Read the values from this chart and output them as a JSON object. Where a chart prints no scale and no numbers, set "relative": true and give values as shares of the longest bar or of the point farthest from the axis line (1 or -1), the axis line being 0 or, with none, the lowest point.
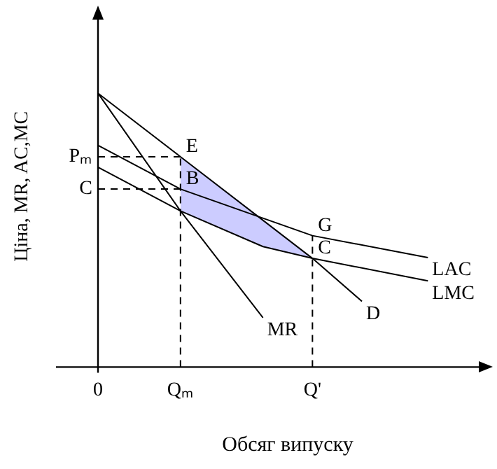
{
  "chart_data": {
    "type": "line",
    "relative": true,
    "xlabel": "Обсяг випуску",
    "ylabel": "Ціна, MR, AC,MC",
    "categories": [
      "0",
      null,
      null,
      null,
      null,
      "Qₘ",
      null,
      null,
      null,
      null,
      null,
      null,
      null,
      "Q'",
      null,
      null,
      null,
      null,
      null,
      null,
      null,
      null,
      null,
      null
    ],
    "series": [
      {
        "name": "D",
        "color": "#000000",
        "values": [
          1.0,
          null,
          null,
          null,
          null,
          0.768,
          null,
          null,
          null,
          null,
          null,
          null,
          null,
          0.397,
          null,
          null,
          0.24,
          null,
          null,
          null,
          null,
          null,
          null,
          null
        ]
      },
      {
        "name": "MR",
        "color": "#000000",
        "values": [
          1.0,
          null,
          null,
          null,
          null,
          0.57,
          null,
          null,
          null,
          null,
          0.18,
          null,
          null,
          null,
          null,
          null,
          null,
          null,
          null,
          null,
          null,
          null,
          null,
          null
        ]
      },
      {
        "name": "LAC",
        "color": "#000000",
        "values": [
          0.81,
          null,
          null,
          null,
          null,
          0.65,
          null,
          null,
          null,
          null,
          null,
          null,
          null,
          0.48,
          null,
          null,
          null,
          null,
          null,
          null,
          0.4,
          null,
          null,
          null
        ]
      },
      {
        "type": "area",
        "color": "#ccccff",
        "values": [
          null,
          null,
          null,
          null,
          null,
          0.768,
          null,
          null,
          null,
          null,
          0.54,
          null,
          null,
          0.397,
          null,
          null,
          null,
          null,
          null,
          null,
          null,
          null,
          null,
          null
        ]
      },
      {
        "name": "LMC",
        "color": "#000000",
        "values": [
          0.73,
          null,
          null,
          null,
          null,
          0.57,
          null,
          null,
          null,
          null,
          0.44,
          null,
          null,
          0.397,
          null,
          null,
          null,
          null,
          null,
          null,
          0.315,
          null,
          null,
          null
        ]
      }
    ],
    "ref_lines": [
      {
        "axis": "y",
        "value": 0.768,
        "label": "Pₘ",
        "line_style": "dashed"
      },
      {
        "axis": "y",
        "value": 0.65,
        "label": "C",
        "line_style": "dashed"
      },
      {
        "axis": "x",
        "value": "Qₘ",
        "line_style": "dashed"
      },
      {
        "axis": "x",
        "value": "Q'",
        "line_style": "dashed"
      }
    ],
    "annotations": [
      {
        "text": "E",
        "x": "Qₘ",
        "y": 0.768
      },
      {
        "text": "B",
        "x": "Qₘ",
        "y": 0.65
      },
      {
        "text": "G",
        "x": "Q'",
        "y": 0.48
      },
      {
        "text": "C",
        "x": "Q'",
        "y": 0.397
      }
    ],
    "legend": false,
    "grid": false,
    "marker": "none",
    "line_style": "solid"
  }
}
